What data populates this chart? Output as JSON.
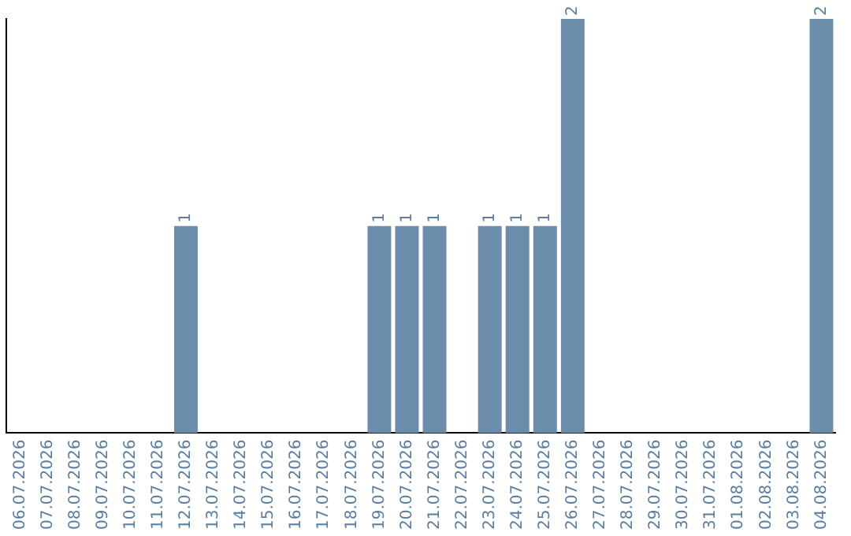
{
  "chart_data": {
    "type": "bar",
    "categories": [
      "06.07.2026",
      "07.07.2026",
      "08.07.2026",
      "09.07.2026",
      "10.07.2026",
      "11.07.2026",
      "12.07.2026",
      "13.07.2026",
      "14.07.2026",
      "15.07.2026",
      "16.07.2026",
      "17.07.2026",
      "18.07.2026",
      "19.07.2026",
      "20.07.2026",
      "21.07.2026",
      "22.07.2026",
      "23.07.2026",
      "24.07.2026",
      "25.07.2026",
      "26.07.2026",
      "27.07.2026",
      "28.07.2026",
      "29.07.2026",
      "30.07.2026",
      "31.07.2026",
      "01.08.2026",
      "02.08.2026",
      "03.08.2026",
      "04.08.2026"
    ],
    "values": [
      0,
      0,
      0,
      0,
      0,
      0,
      1,
      0,
      0,
      0,
      0,
      0,
      0,
      1,
      1,
      1,
      0,
      1,
      1,
      1,
      2,
      0,
      0,
      0,
      0,
      0,
      0,
      0,
      0,
      2
    ],
    "value_labels": [
      null,
      null,
      null,
      null,
      null,
      null,
      "1",
      null,
      null,
      null,
      null,
      null,
      null,
      "1",
      "1",
      "1",
      null,
      "1",
      "1",
      "1",
      "2",
      null,
      null,
      null,
      null,
      null,
      null,
      null,
      null,
      "2"
    ],
    "color": "#6b8cab",
    "grid": false,
    "legend": false
  }
}
